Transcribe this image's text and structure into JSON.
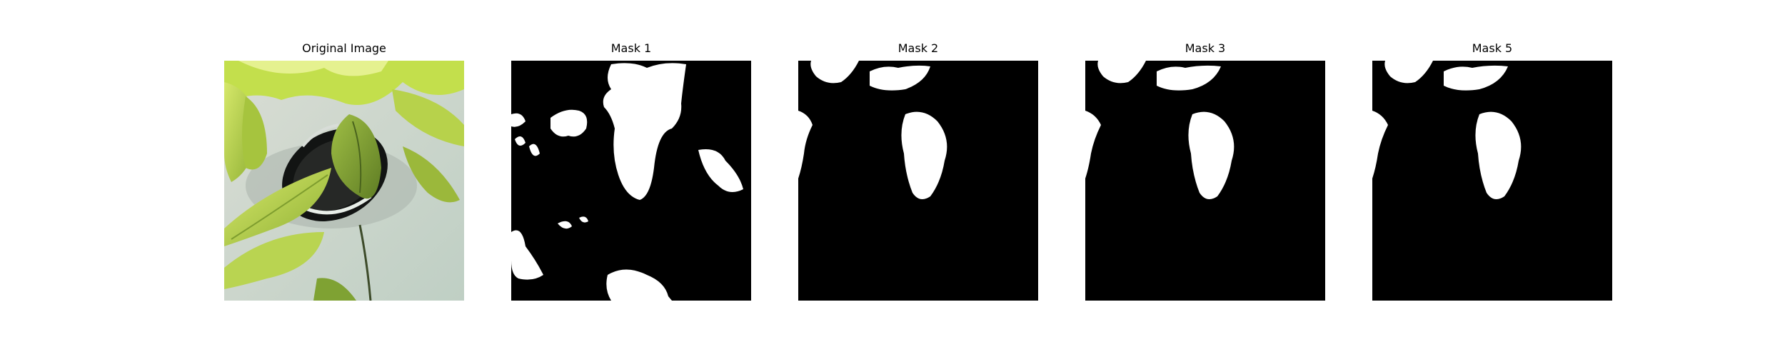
{
  "panels": [
    {
      "title": "Original Image",
      "content": "photo of green leaves around a dark pot opening on a white surface"
    },
    {
      "title": "Mask 1"
    },
    {
      "title": "Mask 2"
    },
    {
      "title": "Mask 3"
    },
    {
      "title": "Mask 5"
    }
  ],
  "colors": {
    "background": "#ffffff",
    "mask_foreground": "#ffffff",
    "mask_background": "#000000",
    "leaf_light": "#b5d24a",
    "leaf_dark": "#6f8f2a",
    "pot": "#1b1d1c",
    "surface": "#cfd8d0"
  }
}
